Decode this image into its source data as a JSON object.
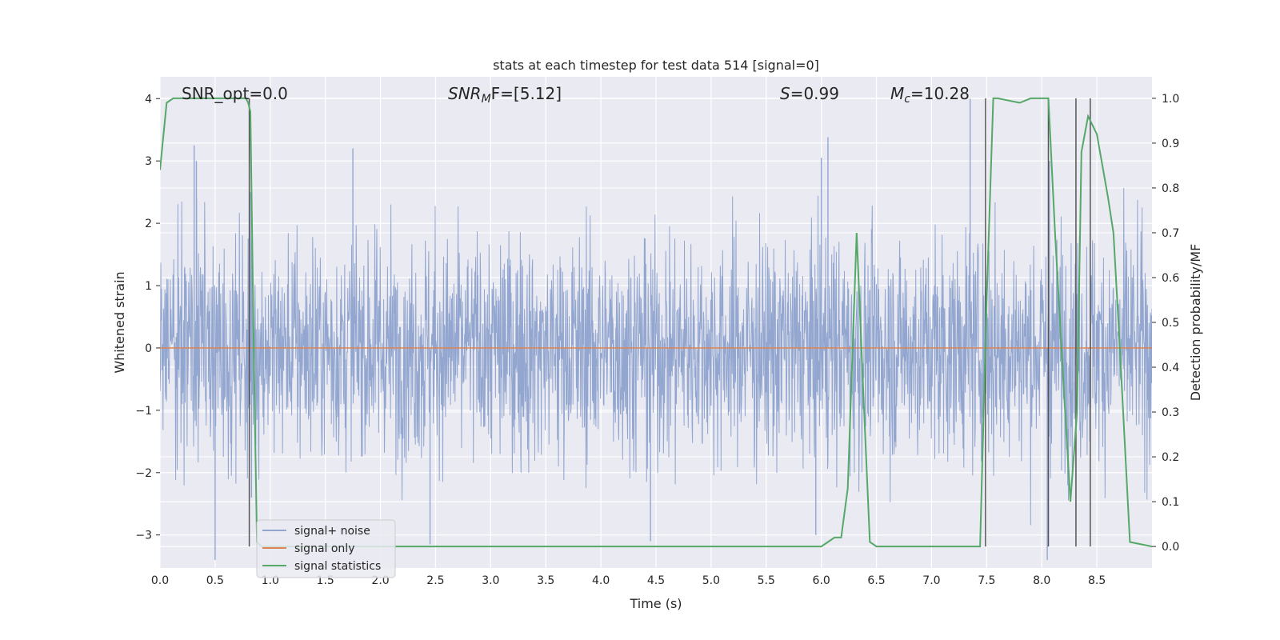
{
  "chart_data": {
    "type": "line",
    "title": "stats at each timestep for test data 514 [signal=0]",
    "xlabel": "Time (s)",
    "ylabel": "Whitened strain",
    "y2label": "Detection probability/MF",
    "xlim": [
      0.0,
      9.0
    ],
    "ylim": [
      -3.53,
      4.35
    ],
    "y2lim": [
      -0.048,
      1.048
    ],
    "xticks": [
      "0.0",
      "0.5",
      "1.0",
      "1.5",
      "2.0",
      "2.5",
      "3.0",
      "3.5",
      "4.0",
      "4.5",
      "5.0",
      "5.5",
      "6.0",
      "6.5",
      "7.0",
      "7.5",
      "8.0",
      "8.5"
    ],
    "yticks": [
      "−3",
      "−2",
      "−1",
      "0",
      "1",
      "2",
      "3",
      "4"
    ],
    "y2ticks": [
      "0.0",
      "0.1",
      "0.2",
      "0.3",
      "0.4",
      "0.5",
      "0.6",
      "0.7",
      "0.8",
      "0.9",
      "1.0"
    ],
    "grid": true,
    "legend_position": "lower-left",
    "annotations": {
      "snr_opt": "SNR_opt=0.0",
      "snr_mf": "SNR",
      "snr_mf_sub": "M",
      "snr_mf_rest": "F=[5.12]",
      "s_val": "S",
      "s_rest": "=0.99",
      "mc": "M",
      "mc_sub": "c",
      "mc_rest": "=10.28"
    },
    "series": [
      {
        "name": "signal+ noise",
        "color": "#92a6cf",
        "noise_std": 0.9,
        "noise_peaks": [
          [
            0.31,
            3.25
          ],
          [
            0.33,
            3.0
          ],
          [
            0.5,
            -3.4
          ],
          [
            0.83,
            -2.4
          ],
          [
            1.75,
            3.2
          ],
          [
            2.45,
            -3.15
          ],
          [
            4.45,
            -3.1
          ],
          [
            5.95,
            -3.0
          ],
          [
            6.06,
            3.38
          ],
          [
            6.0,
            3.05
          ],
          [
            7.35,
            4.0
          ],
          [
            8.05,
            -3.4
          ],
          [
            8.07,
            3.0
          ]
        ]
      },
      {
        "name": "signal only",
        "color": "#dd8452",
        "x": [
          0.0,
          9.0
        ],
        "y": [
          0.0,
          0.0
        ]
      },
      {
        "name": "signal statistics",
        "color": "#55a868",
        "axis": "right",
        "x": [
          0.0,
          0.06,
          0.12,
          0.2,
          0.3,
          0.4,
          0.5,
          0.6,
          0.7,
          0.78,
          0.8,
          0.82,
          0.85,
          0.88,
          0.92,
          1.0,
          2.0,
          3.0,
          4.0,
          5.0,
          6.0,
          6.06,
          6.12,
          6.18,
          6.24,
          6.32,
          6.38,
          6.44,
          6.5,
          7.0,
          7.2,
          7.44,
          7.5,
          7.56,
          7.6,
          7.8,
          7.9,
          8.06,
          8.12,
          8.2,
          8.26,
          8.32,
          8.36,
          8.42,
          8.5,
          8.6,
          8.65,
          8.7,
          8.8,
          9.0
        ],
        "y": [
          0.84,
          0.99,
          1.0,
          1.0,
          1.0,
          1.0,
          1.0,
          1.0,
          1.0,
          1.0,
          0.99,
          0.97,
          0.45,
          0.01,
          0.0,
          0.0,
          0.0,
          0.0,
          0.0,
          0.0,
          0.0,
          0.01,
          0.02,
          0.02,
          0.13,
          0.7,
          0.35,
          0.01,
          0.0,
          0.0,
          0.0,
          0.0,
          0.55,
          1.0,
          1.0,
          0.99,
          1.0,
          1.0,
          0.7,
          0.35,
          0.1,
          0.3,
          0.88,
          0.96,
          0.92,
          0.78,
          0.7,
          0.48,
          0.01,
          0.0
        ]
      }
    ],
    "vlines": [
      0.81,
      7.49,
      8.06,
      8.31,
      8.44
    ]
  }
}
